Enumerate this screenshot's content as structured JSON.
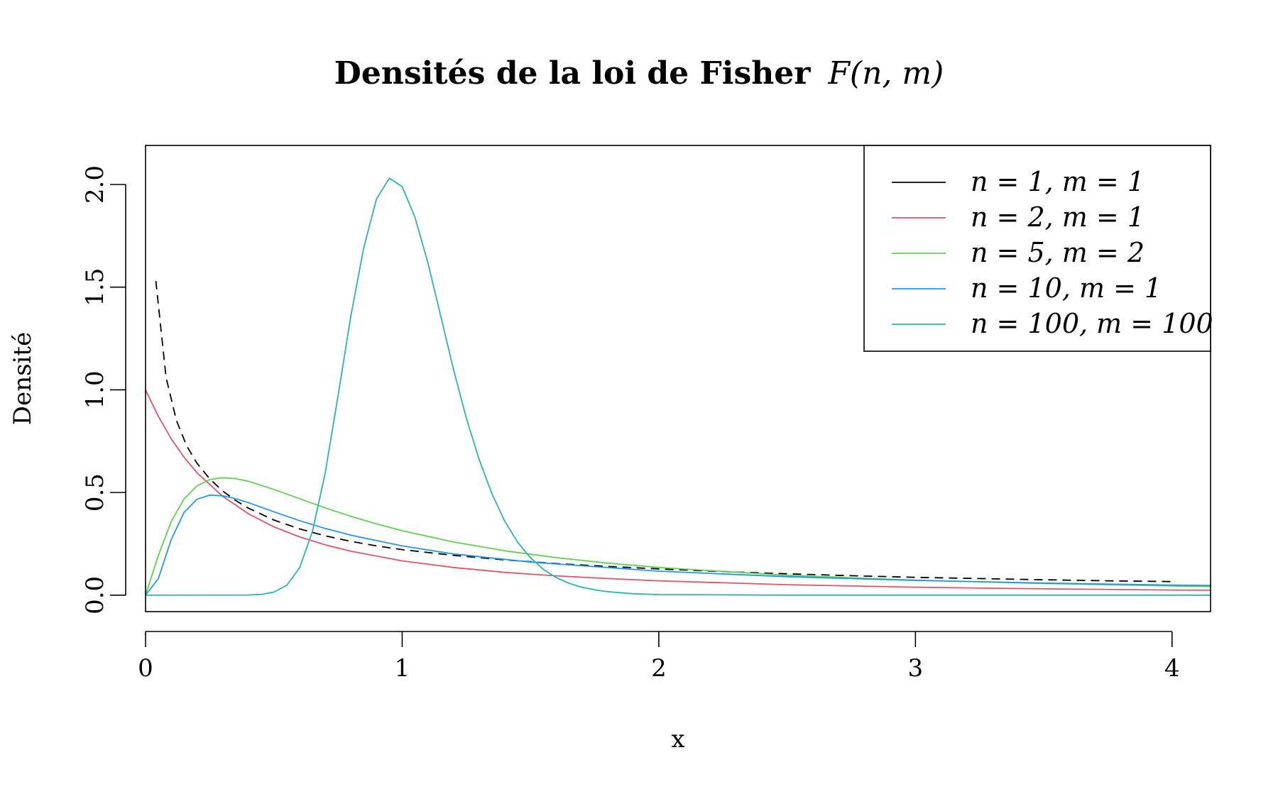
{
  "chart_data": {
    "type": "line",
    "title": {
      "text": "Densités de la loi de Fisher",
      "math": "F(n, m)"
    },
    "xlabel": "x",
    "ylabel": "Densité",
    "xlim": [
      0,
      4.15
    ],
    "ylim": [
      -0.08,
      2.19
    ],
    "x_ticks": [
      {
        "value": 0,
        "label": "0"
      },
      {
        "value": 1,
        "label": "1"
      },
      {
        "value": 2,
        "label": "2"
      },
      {
        "value": 3,
        "label": "3"
      },
      {
        "value": 4,
        "label": "4"
      }
    ],
    "y_ticks": [
      {
        "value": 0,
        "label": "0.0"
      },
      {
        "value": 0.5,
        "label": "0.5"
      },
      {
        "value": 1,
        "label": "1.0"
      },
      {
        "value": 1.5,
        "label": "1.5"
      },
      {
        "value": 2,
        "label": "2.0"
      }
    ],
    "grid": false,
    "legend_position": "top-right",
    "legend_note": "legend draws the n = 1, m = 1 entry as a solid black line; the plotted curve is dashed",
    "series": [
      {
        "name": "n = 1, m = 1",
        "color": "#000000",
        "dash": "dashed",
        "x": [
          0.04,
          0.08,
          0.12,
          0.16,
          0.2,
          0.25,
          0.3,
          0.35,
          0.4,
          0.5,
          0.6,
          0.7,
          0.8,
          0.9,
          1.0,
          1.2,
          1.4,
          1.6,
          1.8,
          2.0,
          2.25,
          2.5,
          2.75,
          3.0,
          3.25,
          3.5,
          3.75,
          4.0
        ],
        "y": [
          1.53,
          1.06,
          0.852,
          0.728,
          0.643,
          0.566,
          0.508,
          0.462,
          0.424,
          0.366,
          0.323,
          0.289,
          0.262,
          0.24,
          0.222,
          0.194,
          0.172,
          0.154,
          0.14,
          0.128,
          0.115,
          0.104,
          0.095,
          0.087,
          0.081,
          0.075,
          0.07,
          0.066
        ]
      },
      {
        "name": "n = 2, m = 1",
        "color": "#df536b",
        "dash": "solid",
        "x": [
          0,
          0.05,
          0.1,
          0.15,
          0.2,
          0.3,
          0.4,
          0.5,
          0.6,
          0.7,
          0.8,
          1.0,
          1.2,
          1.4,
          1.6,
          1.8,
          2.0,
          2.5,
          3.0,
          3.5,
          4.0,
          4.15
        ],
        "y": [
          1.0,
          0.871,
          0.762,
          0.672,
          0.597,
          0.482,
          0.397,
          0.333,
          0.284,
          0.245,
          0.214,
          0.167,
          0.135,
          0.111,
          0.094,
          0.081,
          0.07,
          0.051,
          0.039,
          0.031,
          0.025,
          0.024
        ]
      },
      {
        "name": "n = 5, m = 2",
        "color": "#61d04f",
        "dash": "solid",
        "x": [
          0,
          0.05,
          0.1,
          0.15,
          0.2,
          0.25,
          0.3,
          0.35,
          0.4,
          0.5,
          0.6,
          0.7,
          0.8,
          0.9,
          1.0,
          1.2,
          1.4,
          1.6,
          1.8,
          2.0,
          2.5,
          3.0,
          3.5,
          4.0,
          4.15
        ],
        "y": [
          0,
          0.194,
          0.358,
          0.468,
          0.532,
          0.563,
          0.572,
          0.568,
          0.555,
          0.515,
          0.47,
          0.425,
          0.384,
          0.347,
          0.314,
          0.259,
          0.216,
          0.183,
          0.156,
          0.135,
          0.097,
          0.073,
          0.057,
          0.045,
          0.042
        ]
      },
      {
        "name": "n = 10, m = 1",
        "color": "#2297e6",
        "dash": "solid",
        "x": [
          0,
          0.05,
          0.1,
          0.15,
          0.2,
          0.25,
          0.3,
          0.35,
          0.4,
          0.5,
          0.6,
          0.7,
          0.8,
          1.0,
          1.2,
          1.5,
          2.0,
          2.5,
          3.0,
          3.5,
          4.0,
          4.15
        ],
        "y": [
          0,
          0.081,
          0.27,
          0.403,
          0.467,
          0.487,
          0.484,
          0.47,
          0.451,
          0.406,
          0.363,
          0.325,
          0.292,
          0.24,
          0.201,
          0.161,
          0.117,
          0.09,
          0.072,
          0.059,
          0.049,
          0.047
        ]
      },
      {
        "name": "n = 100, m = 100",
        "color": "#28b5aa",
        "dash": "solid",
        "x": [
          0,
          0.4,
          0.45,
          0.5,
          0.55,
          0.6,
          0.65,
          0.7,
          0.75,
          0.8,
          0.85,
          0.9,
          0.95,
          1.0,
          1.05,
          1.1,
          1.15,
          1.2,
          1.25,
          1.3,
          1.35,
          1.4,
          1.45,
          1.5,
          1.55,
          1.6,
          1.65,
          1.7,
          1.75,
          1.8,
          1.9,
          2.0,
          2.5,
          4.15
        ],
        "y": [
          0,
          0.001,
          0.004,
          0.015,
          0.048,
          0.133,
          0.308,
          0.594,
          0.97,
          1.36,
          1.69,
          1.93,
          2.03,
          1.99,
          1.84,
          1.62,
          1.36,
          1.1,
          0.863,
          0.66,
          0.493,
          0.36,
          0.258,
          0.182,
          0.126,
          0.086,
          0.058,
          0.039,
          0.026,
          0.017,
          0.007,
          0.003,
          0,
          0
        ]
      }
    ]
  }
}
